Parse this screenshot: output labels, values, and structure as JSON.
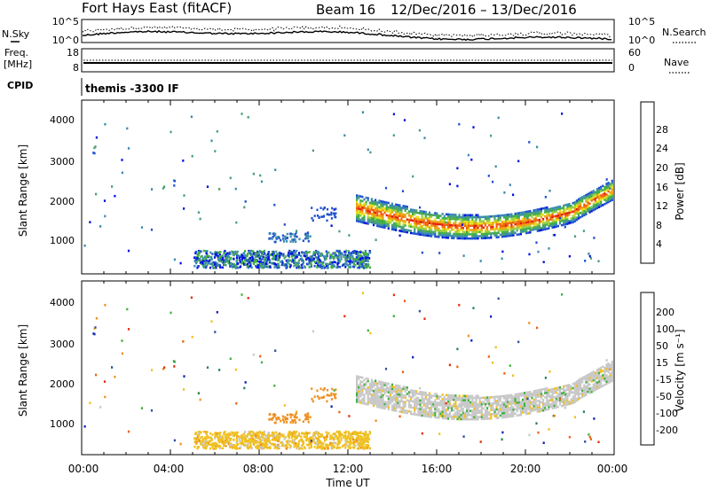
{
  "header": {
    "title": "Fort Hays East (fitACF)",
    "beam": "Beam 16",
    "date_range": "12/Dec/2016 – 13/Dec/2016"
  },
  "chart_data": [
    {
      "type": "line",
      "panel": "noise",
      "left_label": "N.Sky",
      "right_label": "N.Search",
      "left_ticks": [
        "10^5",
        "10^0"
      ],
      "right_ticks": [
        "10^5",
        "10^0"
      ]
    },
    {
      "type": "line",
      "panel": "frequency",
      "left_label_top": "Freq.",
      "left_label_unit": "[MHz]",
      "right_label": "Nave",
      "left_ticks": [
        "18",
        "8"
      ],
      "right_ticks": [
        "60",
        "0"
      ]
    },
    {
      "type": "table",
      "panel": "cpid",
      "label": "CPID",
      "text": "themis -3300 IF"
    },
    {
      "type": "heatmap",
      "panel": "power",
      "ylabel": "Slant Range [km]",
      "yticks": [
        "4000",
        "3000",
        "2000",
        "1000"
      ],
      "colorbar_label": "Power [dB]",
      "colorbar_ticks": [
        "28",
        "24",
        "20",
        "16",
        "12",
        "8",
        "4"
      ],
      "colors": [
        "#0010e0",
        "#1e50d0",
        "#3a8ab0",
        "#48a070",
        "#40b040",
        "#9ad040",
        "#e8e020",
        "#f0a010",
        "#f06010",
        "#e02010"
      ]
    },
    {
      "type": "heatmap",
      "panel": "velocity",
      "ylabel": "Slant Range [km]",
      "yticks": [
        "4000",
        "3000",
        "2000",
        "1000"
      ],
      "colorbar_label": "Velocity [m s⁻¹]",
      "colorbar_ticks": [
        "200",
        "100",
        "50",
        "15",
        "-15",
        "-50",
        "-100",
        "-200"
      ],
      "colors": [
        "#1020c0",
        "#3050a0",
        "#2e8050",
        "#40b040",
        "#c8c8c8",
        "#f0c020",
        "#f09020",
        "#f06010",
        "#e03010"
      ]
    },
    {
      "type": "axis",
      "xlabel": "Time UT",
      "xticks": [
        "00:00",
        "04:00",
        "08:00",
        "12:00",
        "16:00",
        "20:00",
        "00:00"
      ]
    }
  ]
}
